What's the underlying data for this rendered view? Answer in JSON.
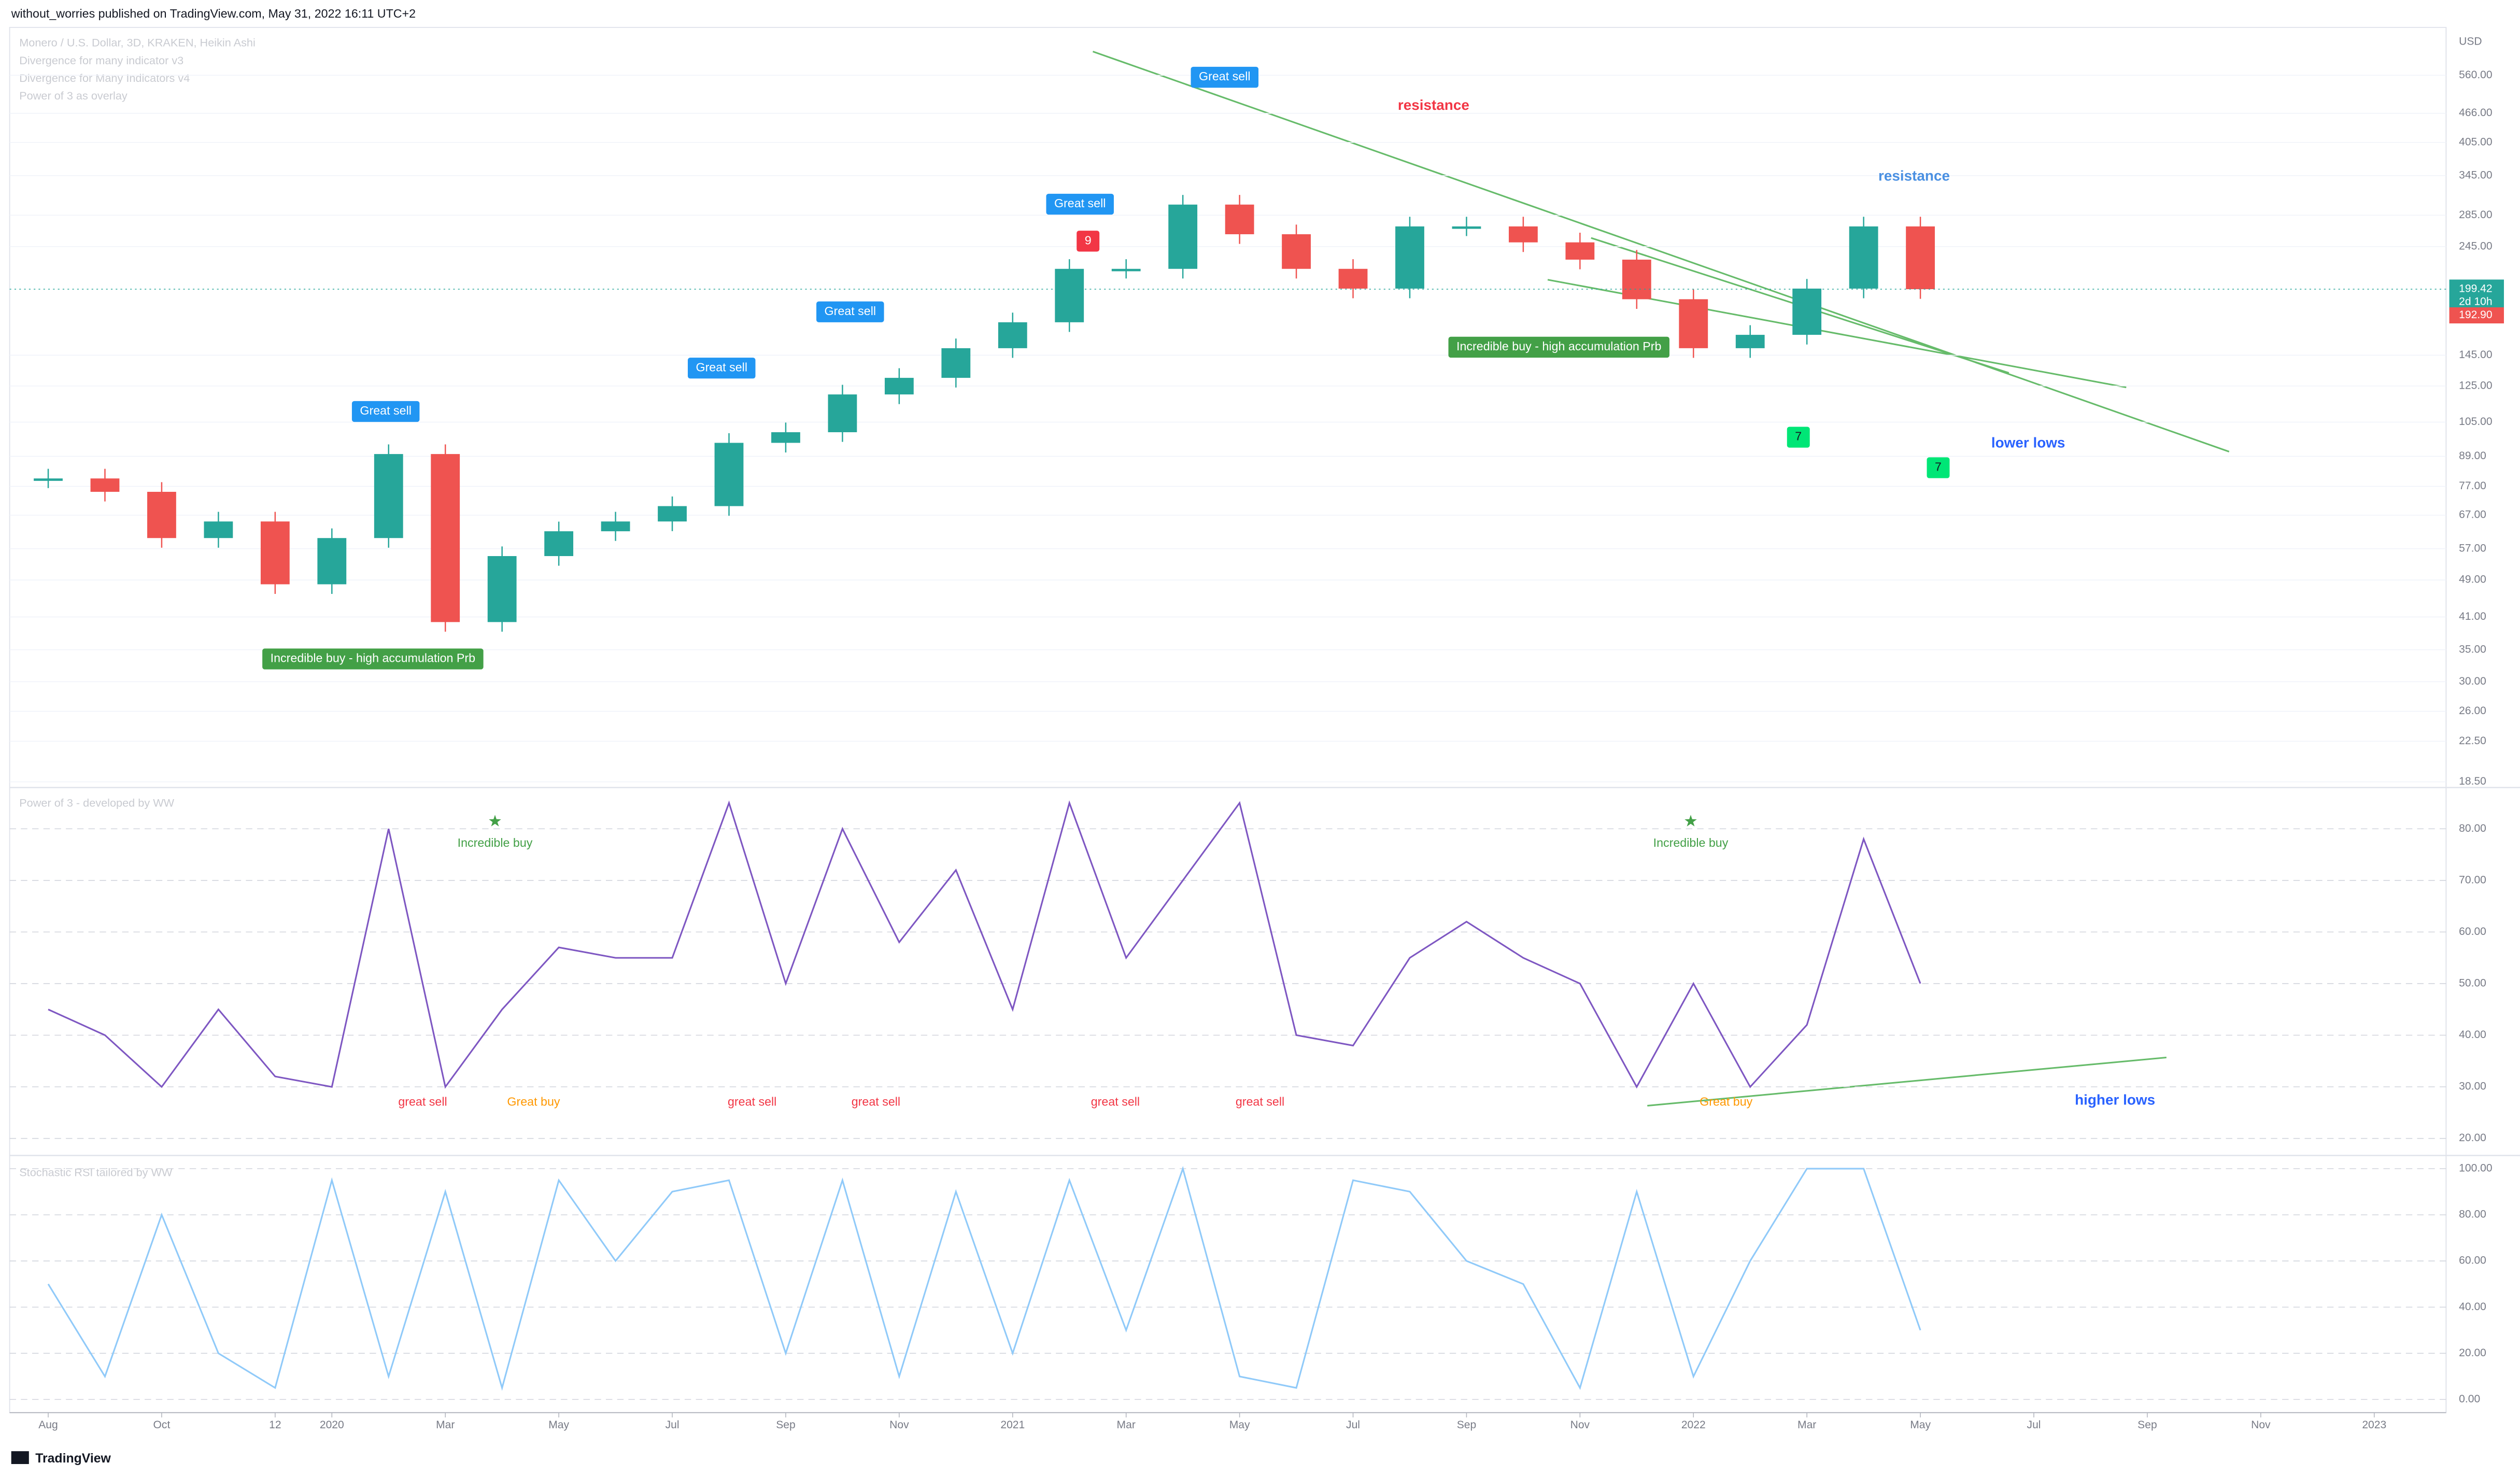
{
  "header": {
    "publisher": "without_worries published on TradingView.com, May 31, 2022 16:11 UTC+2",
    "symbol": "Monero / U.S. Dollar, 3D, KRAKEN, Heikin Ashi",
    "indicators": [
      "Divergence for many indicator v3",
      "Divergence for Many Indicators v4",
      "Power of 3 as overlay"
    ],
    "currency": "USD"
  },
  "chart_data": [
    {
      "type": "candlestick",
      "log_scale": true,
      "x": [
        "2019-08",
        "2019-09",
        "2019-10",
        "2019-11",
        "2019-12",
        "2020-01",
        "2020-02",
        "2020-03",
        "2020-04",
        "2020-05",
        "2020-06",
        "2020-07",
        "2020-08",
        "2020-09",
        "2020-10",
        "2020-11",
        "2020-12",
        "2021-01",
        "2021-02",
        "2021-03",
        "2021-04",
        "2021-05",
        "2021-06",
        "2021-07",
        "2021-08",
        "2021-09",
        "2021-10",
        "2021-11",
        "2021-12",
        "2022-01",
        "2022-02",
        "2022-03",
        "2022-04",
        "2022-05"
      ],
      "values": [
        80,
        75,
        60,
        65,
        48,
        60,
        90,
        40,
        55,
        62,
        65,
        70,
        95,
        100,
        120,
        130,
        150,
        170,
        220,
        220,
        300,
        260,
        220,
        200,
        270,
        270,
        250,
        230,
        190,
        150,
        160,
        200,
        270,
        199.42
      ],
      "up_color": "#26a69a",
      "down_color": "#ef5350",
      "ylim": [
        18,
        700
      ],
      "yticks": [
        {
          "value": 560,
          "label": "560.00"
        },
        {
          "value": 466,
          "label": "466.00"
        },
        {
          "value": 405,
          "label": "405.00"
        },
        {
          "value": 345,
          "label": "345.00"
        },
        {
          "value": 285,
          "label": "285.00"
        },
        {
          "value": 245,
          "label": "245.00"
        },
        {
          "value": 145,
          "label": "145.00"
        },
        {
          "value": 125,
          "label": "125.00"
        },
        {
          "value": 105,
          "label": "105.00"
        },
        {
          "value": 89,
          "label": "89.00"
        },
        {
          "value": 77,
          "label": "77.00"
        },
        {
          "value": 67,
          "label": "67.00"
        },
        {
          "value": 57,
          "label": "57.00"
        },
        {
          "value": 49,
          "label": "49.00"
        },
        {
          "value": 41,
          "label": "41.00"
        },
        {
          "value": 35,
          "label": "35.00"
        },
        {
          "value": 30,
          "label": "30.00"
        },
        {
          "value": 26,
          "label": "26.00"
        },
        {
          "value": 22.5,
          "label": "22.50"
        },
        {
          "value": 18.5,
          "label": "18.50"
        }
      ],
      "last_price": 199.42,
      "countdown": "2d 10h",
      "other_price": {
        "value": 192.9,
        "label": "192.90"
      },
      "annotations": [
        "Great sell",
        "Great sell",
        "Great sell",
        "Great sell",
        "Great sell",
        "resistance",
        "resistance",
        "Incredible buy - high accumulation Prb",
        "Incredible buy - high accumulation Prb",
        "9",
        "7",
        "7",
        "lower lows"
      ]
    },
    {
      "type": "line",
      "title": "Power of 3 - developed by WW",
      "x": [
        "2019-08",
        "2019-09",
        "2019-10",
        "2019-11",
        "2019-12",
        "2020-01",
        "2020-02",
        "2020-03",
        "2020-04",
        "2020-05",
        "2020-06",
        "2020-07",
        "2020-08",
        "2020-09",
        "2020-10",
        "2020-11",
        "2020-12",
        "2021-01",
        "2021-02",
        "2021-03",
        "2021-04",
        "2021-05",
        "2021-06",
        "2021-07",
        "2021-08",
        "2021-09",
        "2021-10",
        "2021-11",
        "2021-12",
        "2022-01",
        "2022-02",
        "2022-03",
        "2022-04",
        "2022-05"
      ],
      "values": [
        45,
        40,
        30,
        45,
        32,
        30,
        80,
        30,
        45,
        57,
        55,
        55,
        85,
        50,
        80,
        58,
        72,
        45,
        85,
        55,
        70,
        85,
        40,
        38,
        55,
        62,
        55,
        50,
        30,
        50,
        30,
        42,
        78,
        50
      ],
      "color": "#7e57c2",
      "ylim": [
        17,
        88
      ],
      "yticks": [
        {
          "value": 80,
          "label": "80.00"
        },
        {
          "value": 70,
          "label": "70.00"
        },
        {
          "value": 60,
          "label": "60.00"
        },
        {
          "value": 50,
          "label": "50.00"
        },
        {
          "value": 40,
          "label": "40.00"
        },
        {
          "value": 30,
          "label": "30.00"
        },
        {
          "value": 20,
          "label": "20.00"
        }
      ],
      "annotations": [
        "Incredible buy",
        "Incredible buy",
        "great sell",
        "Great buy",
        "great sell",
        "great sell",
        "great sell",
        "great sell",
        "Great buy",
        "higher lows"
      ]
    },
    {
      "type": "line",
      "title": "Stochastic RSI tailored by WW",
      "x": [
        "2019-08",
        "2019-09",
        "2019-10",
        "2019-11",
        "2019-12",
        "2020-01",
        "2020-02",
        "2020-03",
        "2020-04",
        "2020-05",
        "2020-06",
        "2020-07",
        "2020-08",
        "2020-09",
        "2020-10",
        "2020-11",
        "2020-12",
        "2021-01",
        "2021-02",
        "2021-03",
        "2021-04",
        "2021-05",
        "2021-06",
        "2021-07",
        "2021-08",
        "2021-09",
        "2021-10",
        "2021-11",
        "2021-12",
        "2022-01",
        "2022-02",
        "2022-03",
        "2022-04",
        "2022-05"
      ],
      "values": [
        50,
        10,
        80,
        20,
        5,
        95,
        10,
        90,
        5,
        95,
        60,
        90,
        95,
        20,
        95,
        10,
        90,
        20,
        95,
        30,
        100,
        10,
        5,
        95,
        90,
        60,
        50,
        5,
        90,
        10,
        60,
        100,
        100,
        30
      ],
      "color": "#90caf9",
      "ylim": [
        -5,
        105
      ],
      "yticks": [
        {
          "value": 100,
          "label": "100.00"
        },
        {
          "value": 80,
          "label": "80.00"
        },
        {
          "value": 60,
          "label": "60.00"
        },
        {
          "value": 40,
          "label": "40.00"
        },
        {
          "value": 20,
          "label": "20.00"
        },
        {
          "value": 0,
          "label": "0.00"
        }
      ],
      "xticks": [
        {
          "value": "2019-08",
          "label": "Aug"
        },
        {
          "value": "2019-10",
          "label": "Oct"
        },
        {
          "value": "2019-12",
          "label": "12"
        },
        {
          "value": "2020-01",
          "label": "2020"
        },
        {
          "value": "2020-03",
          "label": "Mar"
        },
        {
          "value": "2020-05",
          "label": "May"
        },
        {
          "value": "2020-07",
          "label": "Jul"
        },
        {
          "value": "2020-09",
          "label": "Sep"
        },
        {
          "value": "2020-11",
          "label": "Nov"
        },
        {
          "value": "2021-01",
          "label": "2021"
        },
        {
          "value": "2021-03",
          "label": "Mar"
        },
        {
          "value": "2021-05",
          "label": "May"
        },
        {
          "value": "2021-07",
          "label": "Jul"
        },
        {
          "value": "2021-09",
          "label": "Sep"
        },
        {
          "value": "2021-11",
          "label": "Nov"
        },
        {
          "value": "2022-01",
          "label": "2022"
        },
        {
          "value": "2022-03",
          "label": "Mar"
        },
        {
          "value": "2022-05",
          "label": "May"
        },
        {
          "value": "2022-07",
          "label": "Jul"
        },
        {
          "value": "2022-09",
          "label": "Sep"
        },
        {
          "value": "2022-11",
          "label": "Nov"
        },
        {
          "value": "2023-01",
          "label": "2023"
        }
      ]
    }
  ],
  "footer": "TradingView"
}
